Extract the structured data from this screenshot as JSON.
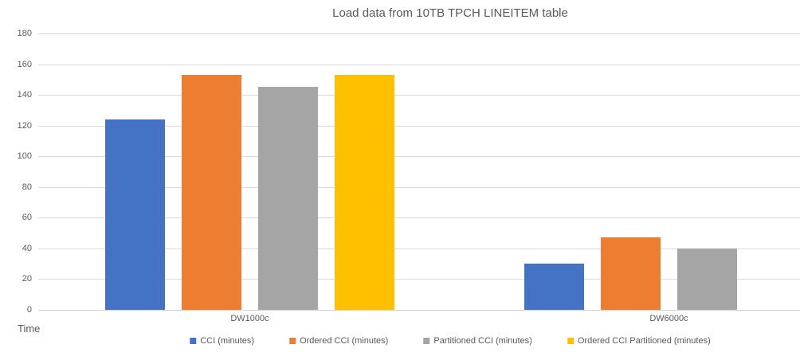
{
  "chart_data": {
    "type": "bar",
    "title": "Load data from 10TB TPCH LINEITEM table",
    "xlabel": "",
    "ylabel": "Time",
    "categories": [
      "DW1000c",
      "DW6000c"
    ],
    "series": [
      {
        "name": "CCI (minutes)",
        "color": "#4472C4",
        "values": [
          124,
          30
        ]
      },
      {
        "name": "Ordered CCI (minutes)",
        "color": "#ED7D31",
        "values": [
          153,
          47
        ]
      },
      {
        "name": "Partitioned CCI (minutes)",
        "color": "#A5A5A5",
        "values": [
          145,
          40
        ]
      },
      {
        "name": "Ordered CCI Partitioned (minutes)",
        "color": "#FFC000",
        "values": [
          153,
          null
        ]
      }
    ],
    "ylim": [
      0,
      180
    ],
    "ytick_step": 20,
    "grid": true,
    "legend_position": "bottom",
    "gridline_color": "#D9D9D9",
    "text_color": "#595959"
  }
}
